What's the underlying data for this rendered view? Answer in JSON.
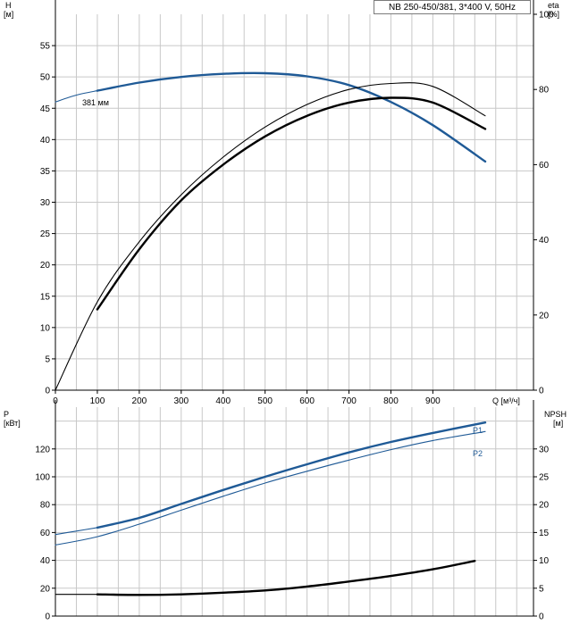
{
  "title": "NB 250-450/381, 3*400 V, 50Hz",
  "upper_panel": {
    "left_axis": {
      "label": "H",
      "unit": "[м]"
    },
    "right_axis": {
      "label": "eta",
      "unit": "[%]"
    },
    "x_axis": {
      "label": "Q [м³/ч]"
    },
    "annotation": "381 мм"
  },
  "lower_panel": {
    "left_axis": {
      "label": "P",
      "unit": "[кВт]"
    },
    "right_axis": {
      "label": "NPSH",
      "unit": "[м]"
    },
    "series_labels": {
      "p1": "P1",
      "p2": "P2"
    }
  },
  "colors": {
    "blue": "#1f5a96",
    "black": "#000000",
    "grid": "#c8c8c8"
  },
  "chart_data": [
    {
      "type": "line",
      "panel": "head-efficiency",
      "xlabel": "Q [м³/ч]",
      "ylabel": "H [м]",
      "y2label": "eta [%]",
      "xlim": [
        0,
        1140
      ],
      "x_ticks": [
        0,
        100,
        200,
        300,
        400,
        500,
        600,
        700,
        800,
        900
      ],
      "ylim": [
        0,
        60
      ],
      "y_ticks": [
        0,
        5,
        10,
        15,
        20,
        25,
        30,
        35,
        40,
        45,
        50,
        55
      ],
      "y2lim": [
        0,
        100
      ],
      "y2_ticks": [
        0,
        20,
        40,
        60,
        80,
        100
      ],
      "grid": true,
      "series": [
        {
          "name": "381 мм",
          "axis": "left",
          "color": "#1f5a96",
          "style": "thick",
          "x": [
            100,
            200,
            300,
            400,
            500,
            600,
            700,
            800,
            900,
            1025
          ],
          "y": [
            47.8,
            49.1,
            50.0,
            50.5,
            50.6,
            50.1,
            48.7,
            46.0,
            42.3,
            36.5
          ]
        },
        {
          "axis": "left",
          "color": "#1f5a96",
          "style": "thin",
          "x": [
            0,
            50,
            100
          ],
          "y": [
            46.0,
            47.1,
            47.8
          ]
        },
        {
          "axis": "right",
          "color": "#000000",
          "style": "thin",
          "x": [
            0,
            100,
            200,
            300,
            400,
            500,
            600,
            700,
            800,
            900,
            1025
          ],
          "y": [
            0,
            23.5,
            39.5,
            52.0,
            62.0,
            70.0,
            76.0,
            80.0,
            81.6,
            80.8,
            73.0
          ]
        },
        {
          "axis": "right",
          "color": "#000000",
          "style": "thick",
          "x": [
            100,
            200,
            300,
            400,
            500,
            600,
            700,
            800,
            900,
            1025
          ],
          "y": [
            21.5,
            37.5,
            50.5,
            60.0,
            67.5,
            73.0,
            76.5,
            77.8,
            76.5,
            69.5
          ]
        }
      ]
    },
    {
      "type": "line",
      "panel": "power-npsh",
      "xlabel": "Q [м³/ч]",
      "ylabel": "P [кВт]",
      "y2label": "NPSH [м]",
      "xlim": [
        0,
        1140
      ],
      "ylim": [
        0,
        150
      ],
      "y_ticks": [
        0,
        20,
        40,
        60,
        80,
        100,
        120
      ],
      "y2lim": [
        0,
        37.5
      ],
      "y2_ticks": [
        0,
        5,
        10,
        15,
        20,
        25,
        30
      ],
      "grid": true,
      "series": [
        {
          "name": "P1",
          "axis": "left",
          "color": "#1f5a96",
          "style": "thick",
          "x": [
            100,
            200,
            300,
            400,
            500,
            600,
            700,
            800,
            900,
            1025
          ],
          "y": [
            63.5,
            70.5,
            80.5,
            90.5,
            100.0,
            109.0,
            117.5,
            125.0,
            131.5,
            139.0
          ]
        },
        {
          "axis": "left",
          "color": "#1f5a96",
          "style": "thin",
          "x": [
            0,
            50,
            100
          ],
          "y": [
            58.5,
            61.0,
            63.5
          ]
        },
        {
          "name": "P2",
          "axis": "left",
          "color": "#1f5a96",
          "style": "thin",
          "x": [
            0,
            100,
            200,
            300,
            400,
            500,
            600,
            700,
            800,
            900,
            1025
          ],
          "y": [
            51.0,
            57.0,
            66.0,
            76.0,
            86.0,
            95.5,
            104.0,
            112.0,
            119.5,
            126.0,
            132.5
          ]
        },
        {
          "axis": "right",
          "color": "#000000",
          "style": "thick",
          "x": [
            100,
            200,
            300,
            400,
            500,
            600,
            700,
            800,
            900,
            1000
          ],
          "y": [
            3.9,
            3.8,
            3.9,
            4.2,
            4.6,
            5.3,
            6.2,
            7.2,
            8.4,
            9.9
          ]
        },
        {
          "axis": "right",
          "color": "#000000",
          "style": "thin",
          "x": [
            0,
            100
          ],
          "y": [
            3.9,
            3.9
          ]
        }
      ]
    }
  ]
}
